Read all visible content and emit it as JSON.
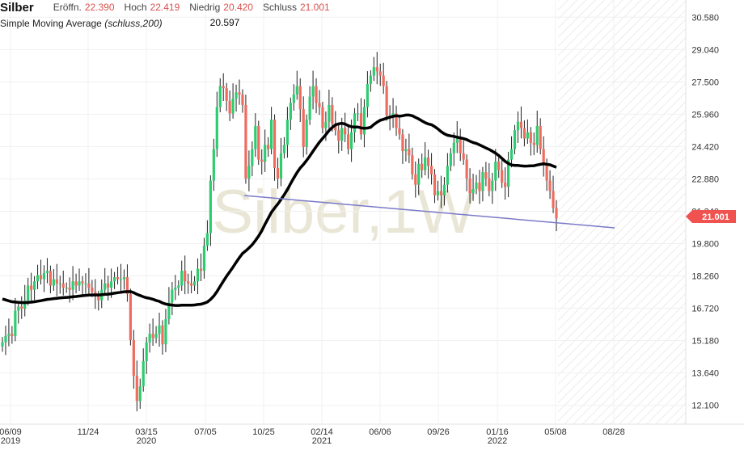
{
  "header": {
    "title": "Silber",
    "open_label": "Eröffn.",
    "open_value": "22.390",
    "high_label": "Hoch",
    "high_value": "22.419",
    "low_label": "Niedrig",
    "low_value": "20.420",
    "close_label": "Schluss",
    "close_value": "21.001"
  },
  "indicator": {
    "name": "Simple Moving Average",
    "params": "(schluss,200)"
  },
  "watermark": "Silber,1W",
  "colors": {
    "up": "#2ecc71",
    "down": "#ef6b5e",
    "sma": "#000000",
    "trendline": "#7a7ac8",
    "price_badge": "#f0524f",
    "grid": "#f0f0f0"
  },
  "chart_data": {
    "type": "candlestick",
    "title": "Silber",
    "interval": "1W",
    "ylim": [
      11.2,
      31.4
    ],
    "y_ticks": [
      "30.580",
      "29.040",
      "27.500",
      "25.960",
      "24.420",
      "22.880",
      "21.340",
      "19.800",
      "18.260",
      "16.720",
      "15.180",
      "13.640",
      "12.100"
    ],
    "x_ticks": [
      {
        "label": "06/09",
        "sub": "2019"
      },
      {
        "label": "11/24",
        "sub": ""
      },
      {
        "label": "03/15",
        "sub": "2020"
      },
      {
        "label": "07/05",
        "sub": ""
      },
      {
        "label": "10/25",
        "sub": ""
      },
      {
        "label": "02/14",
        "sub": "2021"
      },
      {
        "label": "06/06",
        "sub": ""
      },
      {
        "label": "09/26",
        "sub": ""
      },
      {
        "label": "01/16",
        "sub": "2022"
      },
      {
        "label": "05/08",
        "sub": ""
      },
      {
        "label": "08/28",
        "sub": ""
      }
    ],
    "last_price": "21.001",
    "peak_annotation": "20.597",
    "close_series": [
      15.1,
      15.4,
      15.5,
      15.4,
      16.6,
      16.8,
      16.7,
      17.1,
      17.8,
      17.6,
      18.0,
      18.3,
      18.1,
      18.4,
      18.5,
      17.8,
      18.1,
      17.9,
      17.9,
      17.7,
      17.7,
      17.6,
      18.0,
      17.8,
      18.0,
      17.9,
      17.9,
      17.7,
      17.5,
      17.3,
      17.1,
      17.6,
      17.9,
      17.7,
      18.0,
      18.2,
      18.1,
      18.1,
      18.2,
      17.4,
      15.2,
      13.5,
      12.3,
      13.0,
      14.2,
      15.1,
      15.5,
      15.3,
      15.5,
      15.9,
      15.0,
      16.2,
      17.0,
      17.6,
      17.7,
      17.8,
      18.5,
      18.0,
      17.9,
      17.8,
      18.0,
      18.6,
      18.5,
      19.7,
      20.3,
      22.8,
      24.3,
      26.3,
      27.3,
      27.2,
      26.6,
      26.0,
      26.7,
      27.0,
      26.9,
      26.4,
      22.9,
      23.5,
      24.3,
      25.4,
      23.8,
      23.7,
      24.5,
      24.3,
      25.7,
      23.4,
      22.9,
      24.1,
      24.5,
      25.7,
      26.5,
      26.9,
      27.3,
      26.2,
      24.4,
      25.7,
      26.8,
      27.3,
      26.5,
      26.3,
      25.3,
      25.6,
      26.4,
      25.5,
      25.2,
      24.7,
      25.3,
      25.0,
      24.3,
      25.1,
      26.0,
      26.0,
      25.0,
      26.3,
      27.4,
      27.8,
      28.2,
      28.0,
      27.8,
      27.3,
      25.9,
      25.8,
      26.0,
      25.3,
      25.0,
      24.2,
      24.3,
      24.0,
      23.1,
      22.6,
      23.6,
      23.3,
      23.9,
      23.5,
      23.1,
      22.1,
      22.3,
      22.1,
      22.6,
      23.5,
      24.1,
      24.6,
      24.9,
      24.1,
      23.8,
      22.9,
      22.2,
      22.4,
      22.7,
      22.3,
      23.2,
      22.9,
      22.3,
      22.8,
      23.7,
      23.3,
      22.7,
      22.5,
      23.8,
      24.3,
      25.2,
      25.6,
      25.3,
      24.8,
      25.1,
      24.6,
      24.5,
      25.4,
      24.3,
      23.6,
      22.8,
      22.3,
      21.5,
      21.0
    ]
  }
}
